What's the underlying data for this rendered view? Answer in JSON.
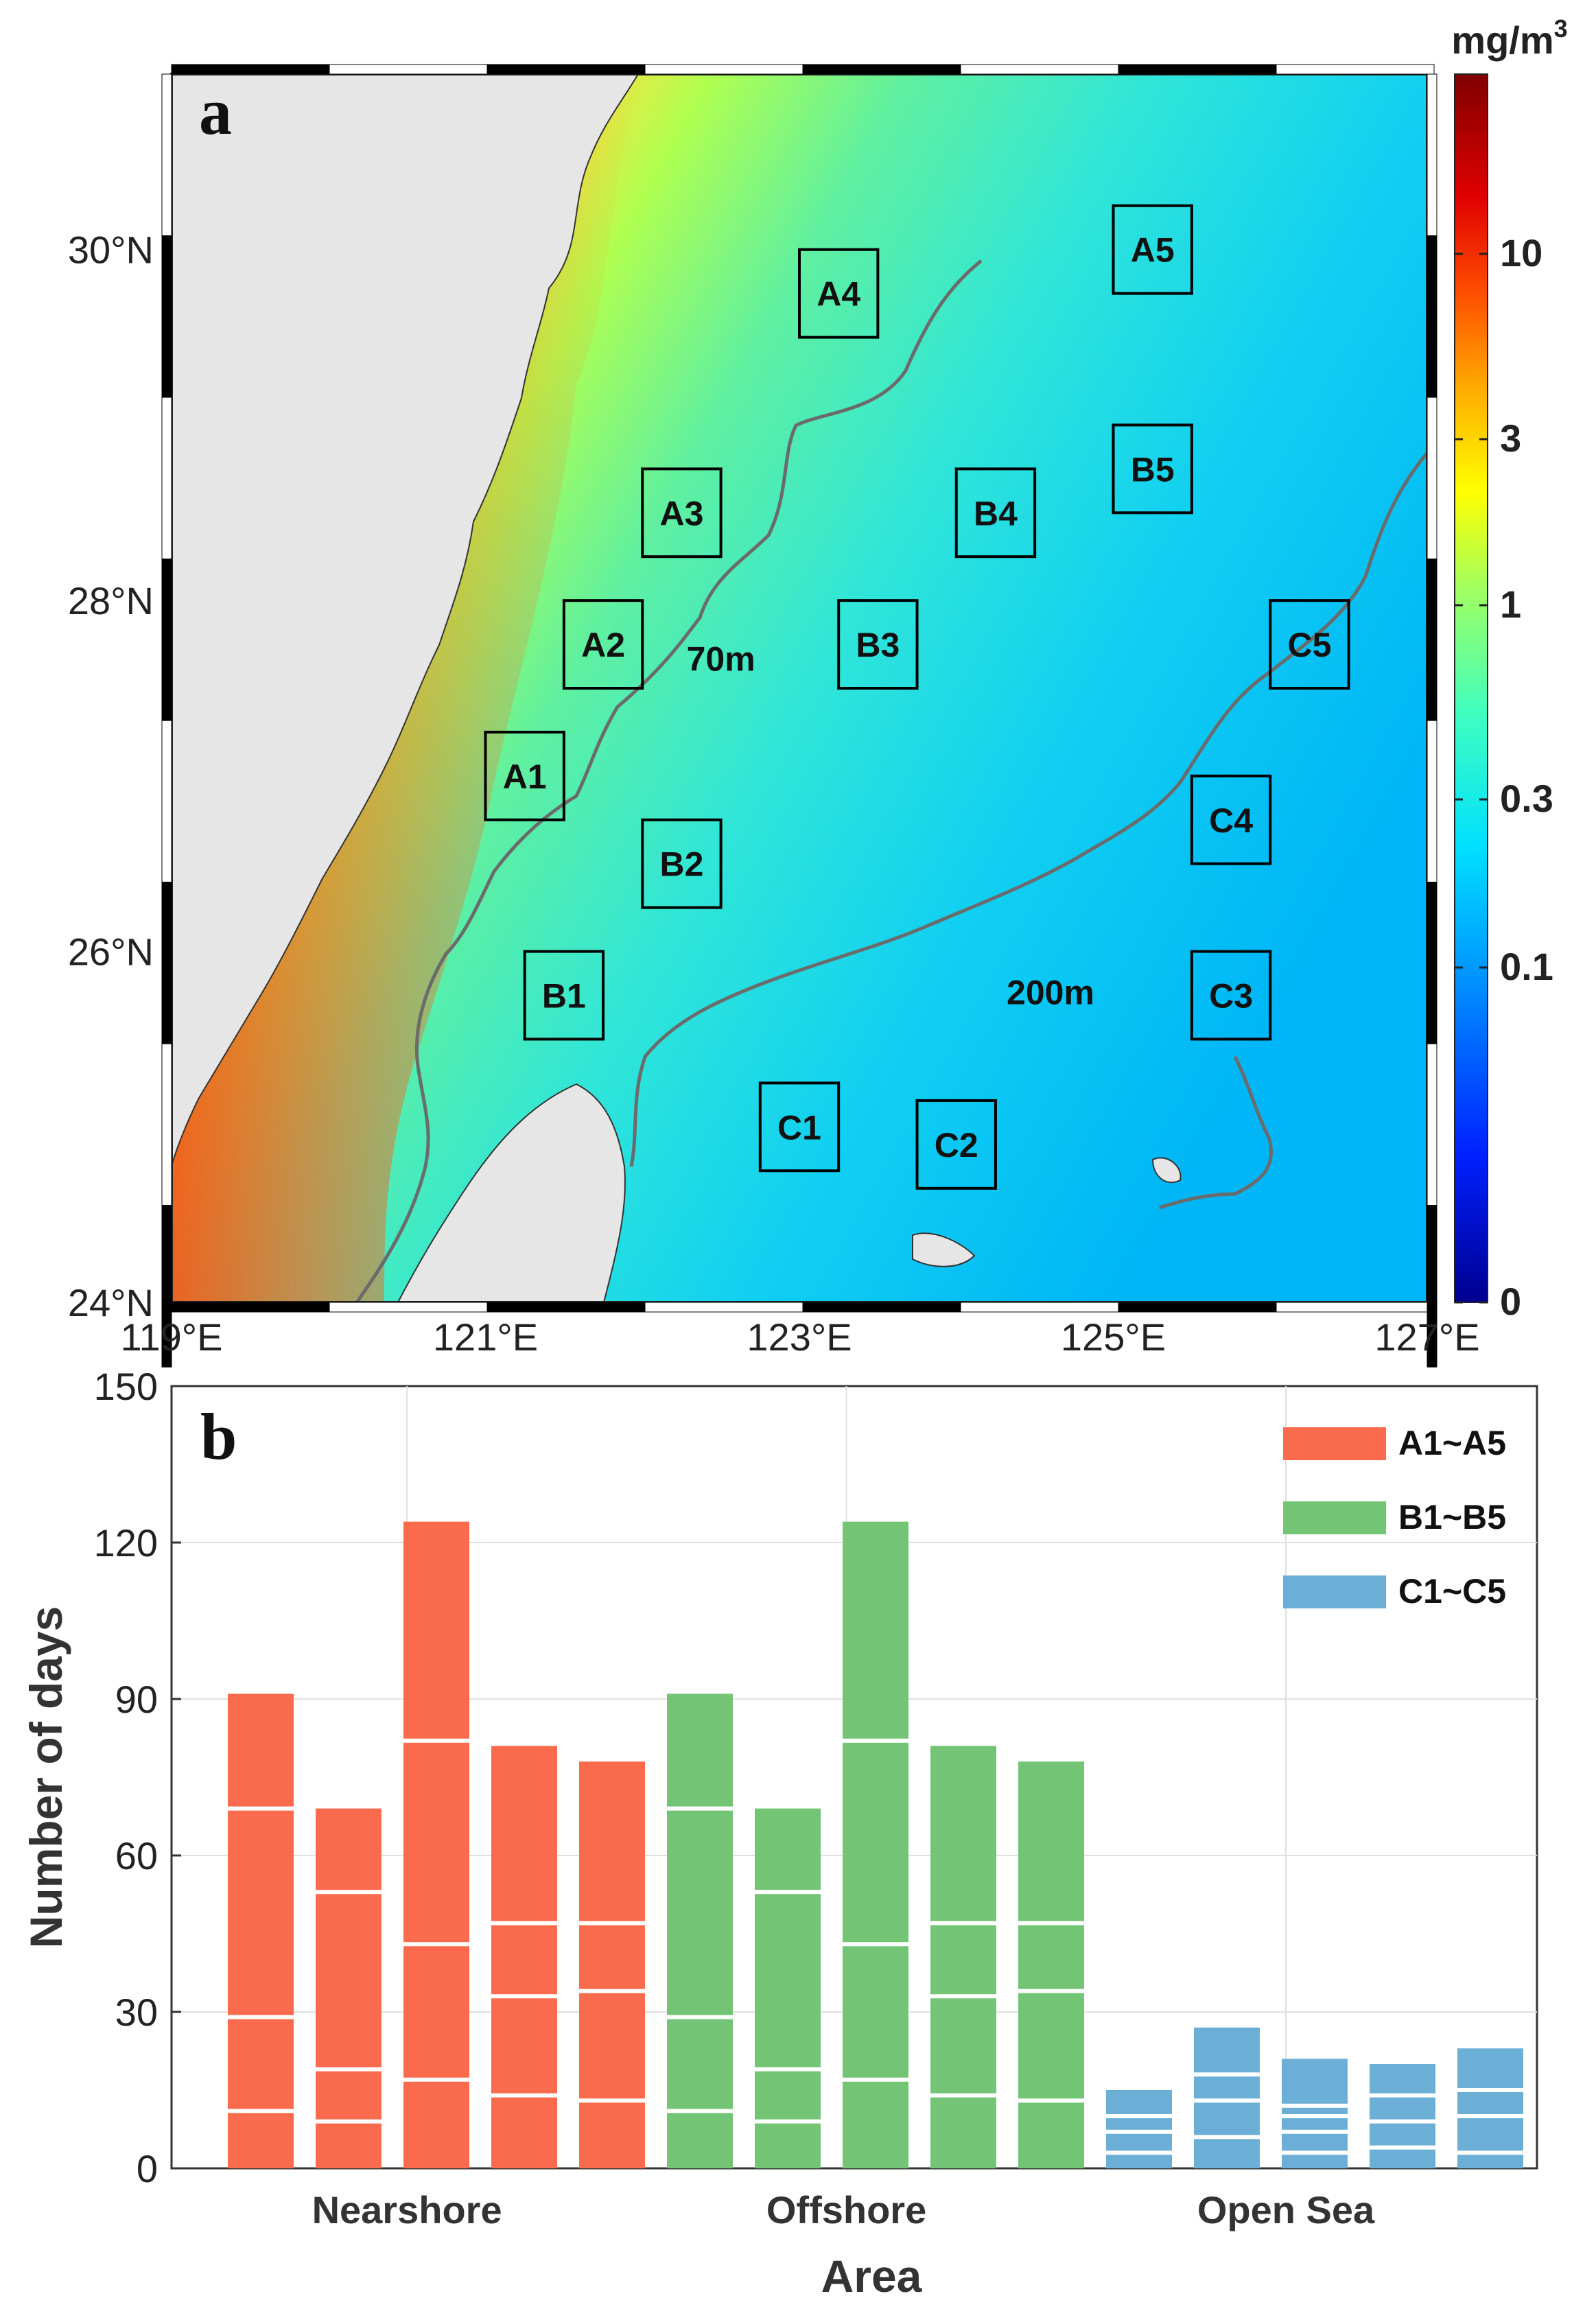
{
  "chart_data": [
    {
      "panel": "a",
      "type": "heatmap",
      "unit_label": "mg/m",
      "unit_exp": "3",
      "x_ticks": [
        "119°E",
        "121°E",
        "123°E",
        "125°E",
        "127°E"
      ],
      "y_ticks": [
        "24°N",
        "26°N",
        "28°N",
        "30°N"
      ],
      "xlim": [
        119,
        127
      ],
      "ylim": [
        24,
        31
      ],
      "colorbar_ticks": [
        "0",
        "0.1",
        "0.3",
        "1",
        "3",
        "10"
      ],
      "colorbar_scale": "log",
      "depth_labels": [
        {
          "text": "70m",
          "lon": 122.5,
          "lat": 27.6
        },
        {
          "text": "200m",
          "lon": 124.6,
          "lat": 25.7
        }
      ],
      "boxes": [
        {
          "label": "A1",
          "lon": 121.25,
          "lat": 27.0
        },
        {
          "label": "A2",
          "lon": 121.75,
          "lat": 27.75
        },
        {
          "label": "A3",
          "lon": 122.25,
          "lat": 28.5
        },
        {
          "label": "A4",
          "lon": 123.25,
          "lat": 29.75
        },
        {
          "label": "A5",
          "lon": 125.25,
          "lat": 30.0
        },
        {
          "label": "B1",
          "lon": 121.5,
          "lat": 25.75
        },
        {
          "label": "B2",
          "lon": 122.25,
          "lat": 26.5
        },
        {
          "label": "B3",
          "lon": 123.5,
          "lat": 27.75
        },
        {
          "label": "B4",
          "lon": 124.25,
          "lat": 28.5
        },
        {
          "label": "B5",
          "lon": 125.25,
          "lat": 28.75
        },
        {
          "label": "C1",
          "lon": 123.0,
          "lat": 25.0
        },
        {
          "label": "C2",
          "lon": 124.0,
          "lat": 24.9
        },
        {
          "label": "C3",
          "lon": 125.75,
          "lat": 25.75
        },
        {
          "label": "C4",
          "lon": 125.75,
          "lat": 26.75
        },
        {
          "label": "C5",
          "lon": 126.25,
          "lat": 27.75
        }
      ]
    },
    {
      "panel": "b",
      "type": "bar",
      "stacked": true,
      "xlabel": "Area",
      "ylabel": "Number of days",
      "ylim": [
        0,
        150
      ],
      "y_ticks": [
        0,
        30,
        60,
        90,
        120,
        150
      ],
      "categories": [
        "Nearshore",
        "Offshore",
        "Open Sea"
      ],
      "grid": true,
      "legend_position": "top-right",
      "series": [
        {
          "name": "A1~A5",
          "color": "#fa6a4c",
          "bars": [
            {
              "total": 91,
              "dividers": [
                11,
                29,
                69
              ]
            },
            {
              "total": 69,
              "dividers": [
                9,
                19,
                53
              ]
            },
            {
              "total": 124,
              "dividers": [
                17,
                43,
                82
              ]
            },
            {
              "total": 81,
              "dividers": [
                14,
                33,
                47
              ]
            },
            {
              "total": 78,
              "dividers": [
                13,
                34,
                47
              ]
            }
          ]
        },
        {
          "name": "B1~B5",
          "color": "#74c476",
          "bars": [
            {
              "total": 91,
              "dividers": [
                11,
                29,
                69
              ]
            },
            {
              "total": 69,
              "dividers": [
                9,
                19,
                53
              ]
            },
            {
              "total": 124,
              "dividers": [
                17,
                43,
                82
              ]
            },
            {
              "total": 81,
              "dividers": [
                14,
                33,
                47
              ]
            },
            {
              "total": 78,
              "dividers": [
                13,
                34,
                47
              ]
            }
          ]
        },
        {
          "name": "C1~C5",
          "color": "#6baed6",
          "bars": [
            {
              "total": 15,
              "dividers": [
                3,
                7,
                10
              ]
            },
            {
              "total": 27,
              "dividers": [
                6,
                13,
                18
              ]
            },
            {
              "total": 21,
              "dividers": [
                3,
                7,
                10,
                12
              ]
            },
            {
              "total": 20,
              "dividers": [
                4,
                9,
                14
              ]
            },
            {
              "total": 23,
              "dividers": [
                3,
                10,
                15
              ]
            }
          ]
        }
      ]
    }
  ]
}
